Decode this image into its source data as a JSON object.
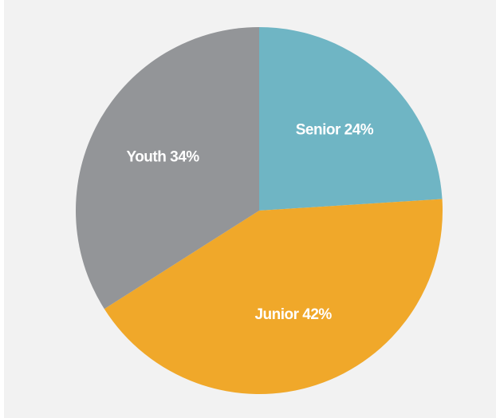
{
  "chart_data": {
    "type": "pie",
    "categories": [
      "Senior",
      "Junior",
      "Youth"
    ],
    "values": [
      24,
      42,
      34
    ],
    "value_labels": [
      "24%",
      "42%",
      "34%"
    ],
    "colors": [
      "#6fb5c4",
      "#f0a82a",
      "#939598"
    ]
  }
}
